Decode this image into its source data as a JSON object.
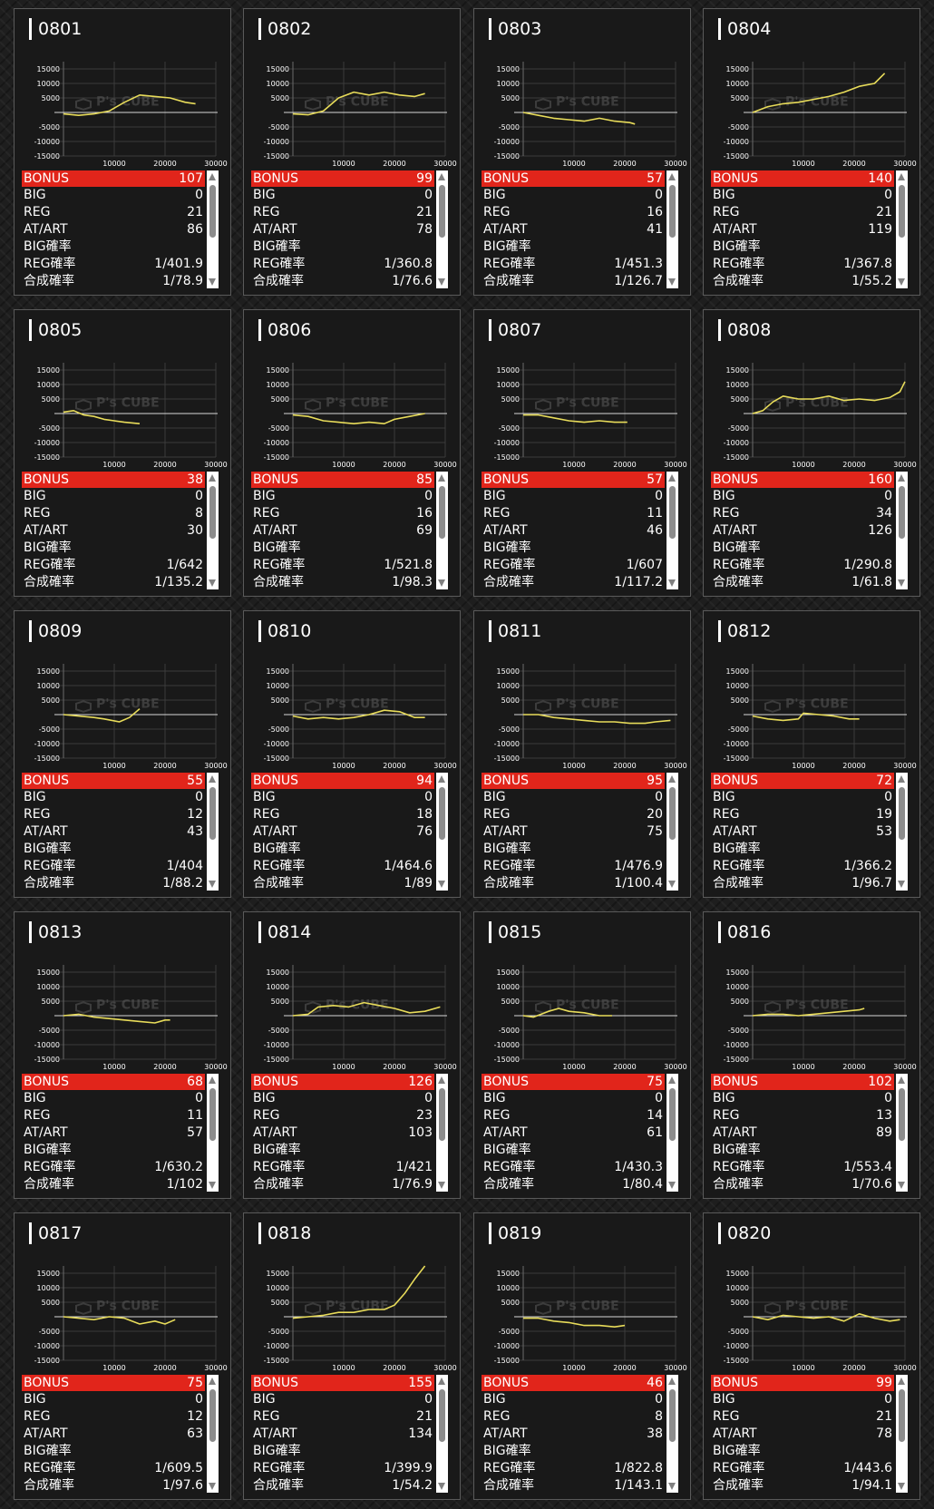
{
  "labels": {
    "bonus": "BONUS",
    "big": "BIG",
    "reg": "REG",
    "at": "AT/ART",
    "big_rate": "BIG確率",
    "reg_rate": "REG確率",
    "total_rate": "合成確率"
  },
  "graph_axis": {
    "y_ticks": [
      "15000",
      "10000",
      "5000",
      "-5000",
      "-10000",
      "-15000"
    ],
    "x_ticks": [
      "10000",
      "20000",
      "30000"
    ],
    "y_range": [
      -15000,
      15000
    ],
    "x_range": [
      0,
      30000
    ]
  },
  "watermark": "P's CUBE",
  "line_color": "#e8dc5a",
  "accent_color": "#e1251b",
  "machines": [
    {
      "id": "0801",
      "bonus": "107",
      "big": "0",
      "reg": "21",
      "at": "86",
      "big_rate": "",
      "reg_rate": "1/401.9",
      "total_rate": "1/78.9",
      "graph": [
        [
          0,
          -500
        ],
        [
          3000,
          -1000
        ],
        [
          6000,
          -500
        ],
        [
          9000,
          500
        ],
        [
          12000,
          3500
        ],
        [
          15000,
          6000
        ],
        [
          18000,
          5500
        ],
        [
          21000,
          5000
        ],
        [
          24000,
          3500
        ],
        [
          26000,
          3000
        ]
      ]
    },
    {
      "id": "0802",
      "bonus": "99",
      "big": "0",
      "reg": "21",
      "at": "78",
      "big_rate": "",
      "reg_rate": "1/360.8",
      "total_rate": "1/76.6",
      "graph": [
        [
          0,
          -500
        ],
        [
          3000,
          -800
        ],
        [
          6000,
          500
        ],
        [
          9000,
          5000
        ],
        [
          12000,
          7000
        ],
        [
          15000,
          6000
        ],
        [
          18000,
          7000
        ],
        [
          21000,
          6000
        ],
        [
          24000,
          5500
        ],
        [
          26000,
          6500
        ]
      ]
    },
    {
      "id": "0803",
      "bonus": "57",
      "big": "0",
      "reg": "16",
      "at": "41",
      "big_rate": "",
      "reg_rate": "1/451.3",
      "total_rate": "1/126.7",
      "graph": [
        [
          0,
          0
        ],
        [
          3000,
          -1000
        ],
        [
          6000,
          -2000
        ],
        [
          9000,
          -2500
        ],
        [
          12000,
          -3000
        ],
        [
          15000,
          -2000
        ],
        [
          18000,
          -3000
        ],
        [
          21000,
          -3500
        ],
        [
          22000,
          -4000
        ]
      ]
    },
    {
      "id": "0804",
      "bonus": "140",
      "big": "0",
      "reg": "21",
      "at": "119",
      "big_rate": "",
      "reg_rate": "1/367.8",
      "total_rate": "1/55.2",
      "graph": [
        [
          0,
          0
        ],
        [
          3000,
          2000
        ],
        [
          6000,
          3000
        ],
        [
          9000,
          3500
        ],
        [
          12000,
          4500
        ],
        [
          15000,
          5500
        ],
        [
          18000,
          7000
        ],
        [
          21000,
          9000
        ],
        [
          24000,
          10000
        ],
        [
          26000,
          13500
        ]
      ]
    },
    {
      "id": "0805",
      "bonus": "38",
      "big": "0",
      "reg": "8",
      "at": "30",
      "big_rate": "",
      "reg_rate": "1/642",
      "total_rate": "1/135.2",
      "graph": [
        [
          0,
          500
        ],
        [
          2000,
          1000
        ],
        [
          4000,
          -500
        ],
        [
          6000,
          -1000
        ],
        [
          8000,
          -2000
        ],
        [
          10000,
          -2500
        ],
        [
          12000,
          -3000
        ],
        [
          15000,
          -3500
        ]
      ]
    },
    {
      "id": "0806",
      "bonus": "85",
      "big": "0",
      "reg": "16",
      "at": "69",
      "big_rate": "",
      "reg_rate": "1/521.8",
      "total_rate": "1/98.3",
      "graph": [
        [
          0,
          -500
        ],
        [
          3000,
          -1000
        ],
        [
          6000,
          -2500
        ],
        [
          9000,
          -3000
        ],
        [
          12000,
          -3500
        ],
        [
          15000,
          -3000
        ],
        [
          18000,
          -3500
        ],
        [
          20000,
          -2000
        ],
        [
          23000,
          -1000
        ],
        [
          26000,
          0
        ]
      ]
    },
    {
      "id": "0807",
      "bonus": "57",
      "big": "0",
      "reg": "11",
      "at": "46",
      "big_rate": "",
      "reg_rate": "1/607",
      "total_rate": "1/117.2",
      "graph": [
        [
          0,
          -500
        ],
        [
          3000,
          -500
        ],
        [
          6000,
          -1500
        ],
        [
          9000,
          -2500
        ],
        [
          12000,
          -3000
        ],
        [
          15000,
          -2500
        ],
        [
          18000,
          -3000
        ],
        [
          20500,
          -3000
        ]
      ]
    },
    {
      "id": "0808",
      "bonus": "160",
      "big": "0",
      "reg": "34",
      "at": "126",
      "big_rate": "",
      "reg_rate": "1/290.8",
      "total_rate": "1/61.8",
      "graph": [
        [
          0,
          0
        ],
        [
          2000,
          1000
        ],
        [
          4000,
          4000
        ],
        [
          6000,
          6000
        ],
        [
          9000,
          5000
        ],
        [
          12000,
          5000
        ],
        [
          15000,
          6000
        ],
        [
          18000,
          4500
        ],
        [
          21000,
          5000
        ],
        [
          24000,
          4500
        ],
        [
          27000,
          5500
        ],
        [
          29000,
          7500
        ],
        [
          30000,
          11000
        ]
      ]
    },
    {
      "id": "0809",
      "bonus": "55",
      "big": "0",
      "reg": "12",
      "at": "43",
      "big_rate": "",
      "reg_rate": "1/404",
      "total_rate": "1/88.2",
      "graph": [
        [
          0,
          0
        ],
        [
          3000,
          -500
        ],
        [
          6000,
          -1000
        ],
        [
          8000,
          -1500
        ],
        [
          11000,
          -2500
        ],
        [
          13000,
          -1000
        ],
        [
          15000,
          2000
        ]
      ]
    },
    {
      "id": "0810",
      "bonus": "94",
      "big": "0",
      "reg": "18",
      "at": "76",
      "big_rate": "",
      "reg_rate": "1/464.6",
      "total_rate": "1/89",
      "graph": [
        [
          0,
          -500
        ],
        [
          3000,
          -1500
        ],
        [
          6000,
          -1000
        ],
        [
          9000,
          -1500
        ],
        [
          12000,
          -1000
        ],
        [
          15000,
          0
        ],
        [
          18000,
          1500
        ],
        [
          21000,
          1000
        ],
        [
          24000,
          -1000
        ],
        [
          26000,
          -1000
        ]
      ]
    },
    {
      "id": "0811",
      "bonus": "95",
      "big": "0",
      "reg": "20",
      "at": "75",
      "big_rate": "",
      "reg_rate": "1/476.9",
      "total_rate": "1/100.4",
      "graph": [
        [
          0,
          0
        ],
        [
          3000,
          0
        ],
        [
          6000,
          -1000
        ],
        [
          9000,
          -1500
        ],
        [
          12000,
          -2000
        ],
        [
          15000,
          -2500
        ],
        [
          18000,
          -2500
        ],
        [
          21000,
          -3000
        ],
        [
          24000,
          -3000
        ],
        [
          26000,
          -2500
        ],
        [
          29000,
          -2000
        ]
      ]
    },
    {
      "id": "0812",
      "bonus": "72",
      "big": "0",
      "reg": "19",
      "at": "53",
      "big_rate": "",
      "reg_rate": "1/366.2",
      "total_rate": "1/96.7",
      "graph": [
        [
          0,
          -500
        ],
        [
          3000,
          -1500
        ],
        [
          6000,
          -2000
        ],
        [
          9000,
          -1500
        ],
        [
          10000,
          500
        ],
        [
          13000,
          0
        ],
        [
          16000,
          -500
        ],
        [
          19000,
          -1500
        ],
        [
          21000,
          -1500
        ]
      ]
    },
    {
      "id": "0813",
      "bonus": "68",
      "big": "0",
      "reg": "11",
      "at": "57",
      "big_rate": "",
      "reg_rate": "1/630.2",
      "total_rate": "1/102",
      "graph": [
        [
          0,
          0
        ],
        [
          3000,
          500
        ],
        [
          6000,
          -500
        ],
        [
          9000,
          -1000
        ],
        [
          12000,
          -1500
        ],
        [
          15000,
          -2000
        ],
        [
          18000,
          -2500
        ],
        [
          20000,
          -1500
        ],
        [
          21000,
          -1500
        ]
      ]
    },
    {
      "id": "0814",
      "bonus": "126",
      "big": "0",
      "reg": "23",
      "at": "103",
      "big_rate": "",
      "reg_rate": "1/421",
      "total_rate": "1/76.9",
      "graph": [
        [
          0,
          0
        ],
        [
          3000,
          500
        ],
        [
          5000,
          3000
        ],
        [
          8000,
          3500
        ],
        [
          11000,
          3000
        ],
        [
          14000,
          4500
        ],
        [
          17000,
          3500
        ],
        [
          20000,
          2500
        ],
        [
          23000,
          1000
        ],
        [
          26000,
          1500
        ],
        [
          29000,
          3000
        ]
      ]
    },
    {
      "id": "0815",
      "bonus": "75",
      "big": "0",
      "reg": "14",
      "at": "61",
      "big_rate": "",
      "reg_rate": "1/430.3",
      "total_rate": "1/80.4",
      "graph": [
        [
          0,
          0
        ],
        [
          2000,
          -500
        ],
        [
          5000,
          1500
        ],
        [
          7000,
          2500
        ],
        [
          9000,
          1500
        ],
        [
          12000,
          1000
        ],
        [
          15000,
          0
        ],
        [
          17500,
          0
        ]
      ]
    },
    {
      "id": "0816",
      "bonus": "102",
      "big": "0",
      "reg": "13",
      "at": "89",
      "big_rate": "",
      "reg_rate": "1/553.4",
      "total_rate": "1/70.6",
      "graph": [
        [
          0,
          0
        ],
        [
          3000,
          500
        ],
        [
          6000,
          500
        ],
        [
          9000,
          0
        ],
        [
          12000,
          500
        ],
        [
          15000,
          1000
        ],
        [
          18000,
          1500
        ],
        [
          21000,
          2000
        ],
        [
          22000,
          2500
        ]
      ]
    },
    {
      "id": "0817",
      "bonus": "75",
      "big": "0",
      "reg": "12",
      "at": "63",
      "big_rate": "",
      "reg_rate": "1/609.5",
      "total_rate": "1/97.6",
      "graph": [
        [
          0,
          0
        ],
        [
          3000,
          -500
        ],
        [
          6000,
          -1000
        ],
        [
          9000,
          0
        ],
        [
          12000,
          -500
        ],
        [
          15000,
          -2500
        ],
        [
          18000,
          -1500
        ],
        [
          20000,
          -2500
        ],
        [
          22000,
          -1000
        ]
      ]
    },
    {
      "id": "0818",
      "bonus": "155",
      "big": "0",
      "reg": "21",
      "at": "134",
      "big_rate": "",
      "reg_rate": "1/399.9",
      "total_rate": "1/54.2",
      "graph": [
        [
          0,
          -500
        ],
        [
          3000,
          0
        ],
        [
          6000,
          500
        ],
        [
          9000,
          1500
        ],
        [
          12000,
          1500
        ],
        [
          15000,
          2500
        ],
        [
          18000,
          2500
        ],
        [
          20000,
          4000
        ],
        [
          22000,
          8000
        ],
        [
          24000,
          13000
        ],
        [
          26000,
          17500
        ]
      ]
    },
    {
      "id": "0819",
      "bonus": "46",
      "big": "0",
      "reg": "8",
      "at": "38",
      "big_rate": "",
      "reg_rate": "1/822.8",
      "total_rate": "1/143.1",
      "graph": [
        [
          0,
          -500
        ],
        [
          3000,
          -500
        ],
        [
          6000,
          -1500
        ],
        [
          9000,
          -2000
        ],
        [
          12000,
          -3000
        ],
        [
          15000,
          -3000
        ],
        [
          18000,
          -3500
        ],
        [
          20000,
          -3000
        ]
      ]
    },
    {
      "id": "0820",
      "bonus": "99",
      "big": "0",
      "reg": "21",
      "at": "78",
      "big_rate": "",
      "reg_rate": "1/443.6",
      "total_rate": "1/94.1",
      "graph": [
        [
          0,
          0
        ],
        [
          3000,
          -1000
        ],
        [
          6000,
          500
        ],
        [
          9000,
          0
        ],
        [
          12000,
          -500
        ],
        [
          15000,
          0
        ],
        [
          18000,
          -1500
        ],
        [
          21000,
          1000
        ],
        [
          24000,
          -500
        ],
        [
          27000,
          -1500
        ],
        [
          29000,
          -1000
        ]
      ]
    }
  ]
}
